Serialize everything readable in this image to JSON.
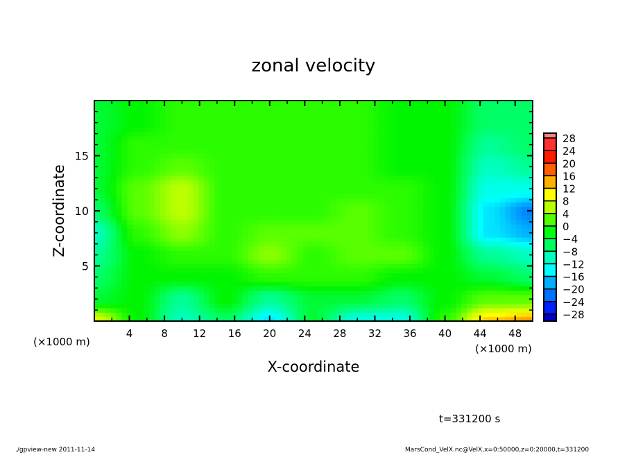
{
  "chart_data": {
    "type": "heatmap",
    "title": "zonal velocity",
    "xlabel": "X-coordinate",
    "ylabel": "Z-coordinate",
    "x_unit_left": "(×1000 m)",
    "x_unit_right": "(×1000 m)",
    "xlim": [
      0,
      50
    ],
    "ylim": [
      0,
      20
    ],
    "x_ticks": [
      4,
      8,
      12,
      16,
      20,
      24,
      28,
      32,
      36,
      40,
      44,
      48
    ],
    "x_tick_labels": [
      "4",
      "8",
      "12",
      "16",
      "20",
      "24",
      "28",
      "32",
      "36",
      "40",
      "44",
      "48"
    ],
    "y_ticks": [
      5,
      10,
      15
    ],
    "y_tick_labels": [
      "5",
      "10",
      "15"
    ],
    "x_minor_step": 2,
    "y_minor_step": 1,
    "grid_x": [
      0,
      5,
      10,
      15,
      20,
      25,
      30,
      35,
      40,
      45,
      50
    ],
    "grid_z": [
      0,
      2,
      4,
      6,
      8,
      10,
      12,
      14,
      16,
      18,
      20
    ],
    "values": [
      [
        10,
        0,
        -8,
        -4,
        -12,
        -2,
        -10,
        -10,
        2,
        14,
        16
      ],
      [
        -2,
        0,
        -6,
        0,
        -6,
        -2,
        -2,
        -4,
        0,
        4,
        4
      ],
      [
        -4,
        0,
        0,
        0,
        2,
        2,
        2,
        0,
        0,
        -2,
        -4
      ],
      [
        -6,
        0,
        2,
        2,
        6,
        2,
        4,
        4,
        0,
        -6,
        -8
      ],
      [
        -8,
        2,
        6,
        2,
        4,
        4,
        4,
        2,
        0,
        -12,
        -14
      ],
      [
        -4,
        4,
        8,
        2,
        2,
        2,
        4,
        2,
        0,
        -12,
        -16
      ],
      [
        -2,
        4,
        8,
        2,
        2,
        2,
        2,
        2,
        0,
        -10,
        -10
      ],
      [
        -2,
        2,
        4,
        2,
        2,
        2,
        2,
        0,
        0,
        -8,
        -6
      ],
      [
        -2,
        2,
        2,
        2,
        2,
        2,
        2,
        0,
        0,
        -6,
        -4
      ],
      [
        -2,
        0,
        2,
        2,
        2,
        2,
        2,
        0,
        0,
        -4,
        -4
      ],
      [
        -2,
        0,
        2,
        2,
        2,
        2,
        2,
        0,
        0,
        -4,
        -4
      ]
    ],
    "colorbar": {
      "levels": [
        28,
        24,
        20,
        16,
        12,
        8,
        4,
        0,
        -4,
        -8,
        -12,
        -16,
        -20,
        -24,
        -28
      ],
      "labels": [
        "28",
        "24",
        "20",
        "16",
        "12",
        "8",
        "4",
        "0",
        "−4",
        "−8",
        "−12",
        "−16",
        "−20",
        "−24",
        "−28"
      ],
      "colors": [
        "#ff8080",
        "#ff3030",
        "#ff1a00",
        "#ff6000",
        "#ffb000",
        "#ffff00",
        "#b8ff00",
        "#50ff00",
        "#00ff10",
        "#00ff60",
        "#00ffc0",
        "#00ffff",
        "#00b0ff",
        "#0070ff",
        "#0020ff",
        "#0000c8",
        "#300090",
        "#6000a0"
      ]
    },
    "time_label": "t=331200 s",
    "footer_left": "./gpview-new  2011-11-14",
    "footer_right": "MarsCond_VelX.nc@VelX,x=0:50000,z=0:20000,t=331200"
  }
}
